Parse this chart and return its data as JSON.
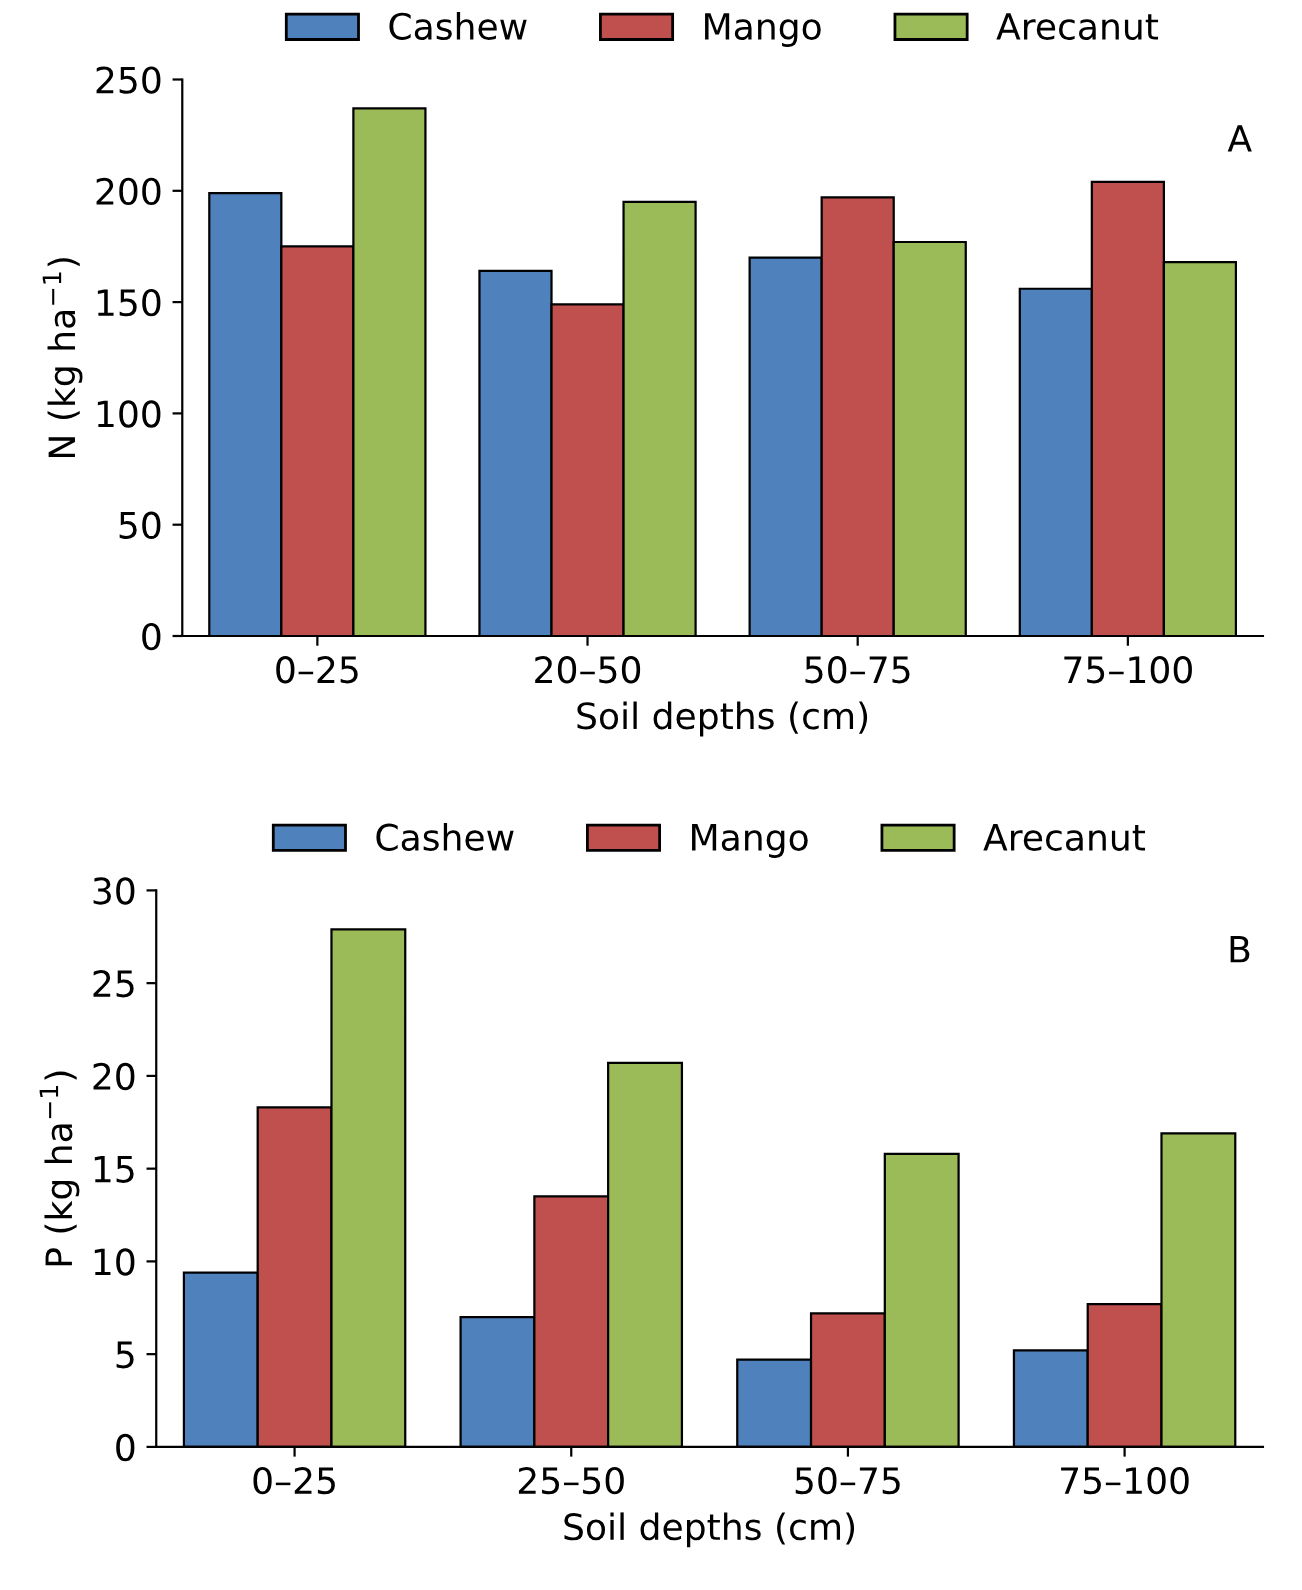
{
  "chart_data": [
    {
      "type": "bar",
      "categories": [
        "0–25",
        "20–50",
        "50–75",
        "75–100"
      ],
      "xlabel": "Soil depths (cm)",
      "ylabel": "N (kg ha$^{−1}$)",
      "ylim": [
        0,
        250
      ],
      "yticks": [
        0,
        50,
        100,
        150,
        200,
        250
      ],
      "legend": "top",
      "grid": false,
      "annotations": [
        "A"
      ],
      "series": [
        {
          "name": "Cashew",
          "color": "#4f81bd",
          "values": [
            199,
            164,
            170,
            156
          ]
        },
        {
          "name": "Mango",
          "color": "#c0504d",
          "values": [
            175,
            149,
            197,
            204
          ]
        },
        {
          "name": "Arecanut",
          "color": "#9bbb59",
          "values": [
            237,
            195,
            177,
            168
          ]
        }
      ]
    },
    {
      "type": "bar",
      "categories": [
        "0–25",
        "25–50",
        "50–75",
        "75–100"
      ],
      "xlabel": "Soil depths (cm)",
      "ylabel": "P (kg ha$^{−1}$)",
      "ylim": [
        0,
        30
      ],
      "yticks": [
        0,
        5,
        10,
        15,
        20,
        25,
        30
      ],
      "legend": "top",
      "grid": false,
      "annotations": [
        "B"
      ],
      "series": [
        {
          "name": "Cashew",
          "color": "#4f81bd",
          "values": [
            9.4,
            7.0,
            4.7,
            5.2
          ]
        },
        {
          "name": "Mango",
          "color": "#c0504d",
          "values": [
            18.3,
            13.5,
            7.2,
            7.7
          ]
        },
        {
          "name": "Arecanut",
          "color": "#9bbb59",
          "values": [
            27.9,
            20.7,
            15.8,
            16.9
          ]
        }
      ]
    }
  ]
}
